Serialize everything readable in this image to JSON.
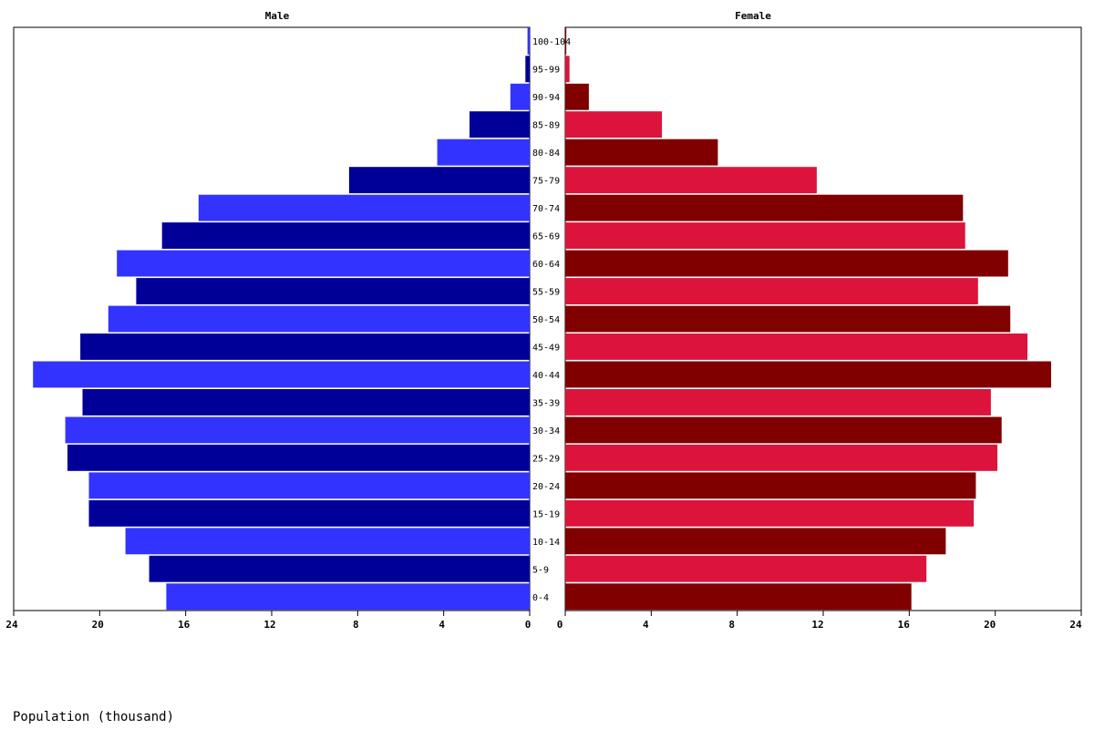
{
  "chart_data": {
    "type": "bar",
    "orientation": "horizontal",
    "panels": [
      {
        "title": "Male",
        "side": "left"
      },
      {
        "title": "Female",
        "side": "right"
      }
    ],
    "caption": "Population (thousand)",
    "categories": [
      "0-4",
      "5-9",
      "10-14",
      "15-19",
      "20-24",
      "25-29",
      "30-34",
      "35-39",
      "40-44",
      "45-49",
      "50-54",
      "55-59",
      "60-64",
      "65-69",
      "70-74",
      "75-79",
      "80-84",
      "85-89",
      "90-94",
      "95-99",
      "100-104"
    ],
    "series": [
      {
        "name": "Male",
        "values": [
          16.9,
          17.7,
          18.8,
          20.5,
          20.5,
          21.5,
          21.6,
          20.8,
          23.1,
          20.9,
          19.6,
          18.3,
          19.2,
          17.1,
          15.4,
          8.4,
          4.3,
          2.8,
          0.9,
          0.2,
          0.1
        ]
      },
      {
        "name": "Female",
        "values": [
          16.1,
          16.8,
          17.7,
          19.0,
          19.1,
          20.1,
          20.3,
          19.8,
          22.6,
          21.5,
          20.7,
          19.2,
          20.6,
          18.6,
          18.5,
          11.7,
          7.1,
          4.5,
          1.1,
          0.2,
          0.05
        ]
      }
    ],
    "colors": {
      "male_light": "#3333ff",
      "male_dark": "#000099",
      "female_light": "#dc143c",
      "female_dark": "#800000"
    },
    "x_ticks": [
      "24",
      "20",
      "16",
      "12",
      "8",
      "4",
      "0"
    ],
    "x_ticks_right": [
      "0",
      "4",
      "8",
      "12",
      "16",
      "20",
      "24"
    ],
    "xlim": [
      0,
      24
    ],
    "grid": false
  }
}
